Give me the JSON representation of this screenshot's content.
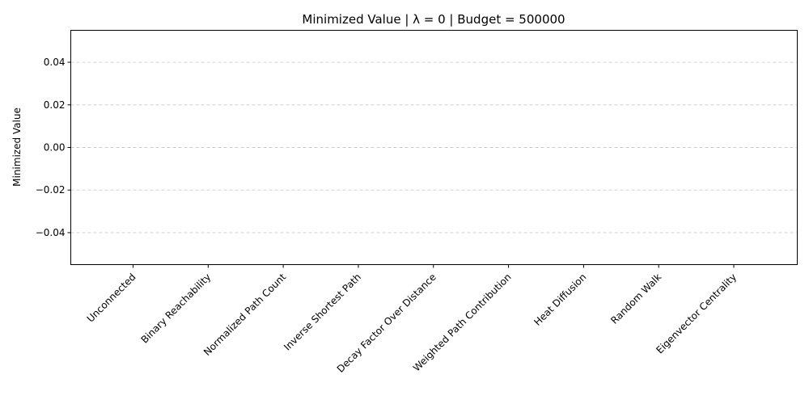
{
  "chart_data": {
    "type": "bar",
    "title": "Minimized Value | λ = 0 | Budget = 500000",
    "xlabel": "",
    "ylabel": "Minimized Value",
    "categories": [
      "Unconnected",
      "Binary Reachability",
      "Normalized Path Count",
      "Inverse Shortest Path",
      "Decay Factor Over Distance",
      "Weighted Path Contribution",
      "Heat Diffusion",
      "Random Walk",
      "Eigenvector Centrality"
    ],
    "values": [
      0,
      0,
      0,
      0,
      0,
      0,
      0,
      0,
      0
    ],
    "ylim": [
      -0.055,
      0.055
    ],
    "yticks": [
      -0.04,
      -0.02,
      0.0,
      0.02,
      0.04
    ],
    "ytick_labels": [
      "−0.04",
      "−0.02",
      "0.00",
      "0.02",
      "0.04"
    ],
    "grid": "y-dashed",
    "bar_color": "#4c72b0"
  }
}
